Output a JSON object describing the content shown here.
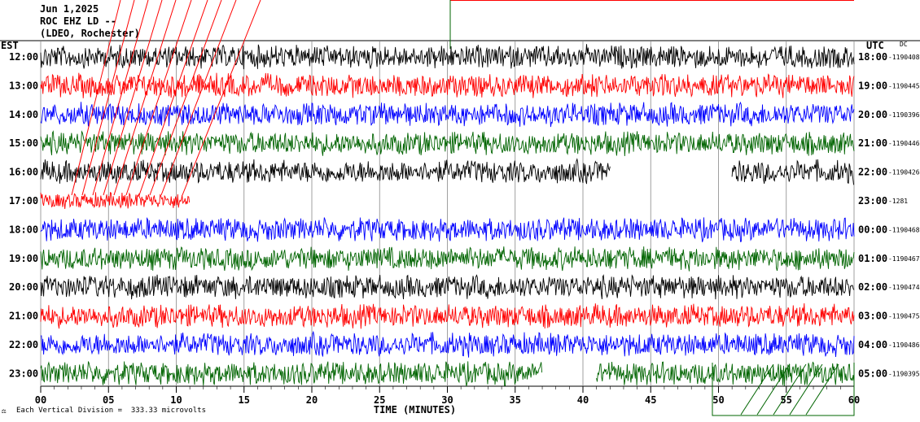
{
  "header": {
    "date": "Jun 1,2025",
    "station": "ROC EHZ LD --",
    "network": "(LDEO, Rochester)",
    "left_zone": "EST",
    "right_zone": "UTC",
    "dc_label": "DC"
  },
  "footer": {
    "scale_note": "Each Vertical Division =  333.33 microvolts"
  },
  "chart_data": {
    "type": "line",
    "title": "ROC EHZ LD --",
    "xlabel": "TIME (MINUTES)",
    "ylabel": "",
    "xlim": [
      0,
      60
    ],
    "x_ticks": [
      "00",
      "05",
      "10",
      "15",
      "20",
      "25",
      "30",
      "35",
      "40",
      "45",
      "50",
      "55",
      "60"
    ],
    "trace_colors": [
      "#000000",
      "#ff0000",
      "#0000ff",
      "#006400"
    ],
    "rows": [
      {
        "est": "12:00",
        "utc": "18:00",
        "dc": "-1190408",
        "color": "#000000",
        "segments": [
          [
            0,
            60
          ]
        ]
      },
      {
        "est": "13:00",
        "utc": "19:00",
        "dc": "-1190445",
        "color": "#ff0000",
        "segments": [
          [
            0,
            60
          ]
        ]
      },
      {
        "est": "14:00",
        "utc": "20:00",
        "dc": "-1190396",
        "color": "#0000ff",
        "segments": [
          [
            0,
            60
          ]
        ]
      },
      {
        "est": "15:00",
        "utc": "21:00",
        "dc": "-1190446",
        "color": "#006400",
        "segments": [
          [
            0,
            60
          ]
        ]
      },
      {
        "est": "16:00",
        "utc": "22:00",
        "dc": "-1190426",
        "color": "#000000",
        "segments": [
          [
            0,
            42
          ],
          [
            51,
            60
          ]
        ]
      },
      {
        "est": "17:00",
        "utc": "23:00",
        "dc": "-1281",
        "color": "#ff0000",
        "segments": [
          [
            0,
            11
          ]
        ]
      },
      {
        "est": "18:00",
        "utc": "00:00",
        "dc": "-1190468",
        "color": "#0000ff",
        "segments": [
          [
            0,
            60
          ]
        ]
      },
      {
        "est": "19:00",
        "utc": "01:00",
        "dc": "-1190467",
        "color": "#006400",
        "segments": [
          [
            0,
            60
          ]
        ]
      },
      {
        "est": "20:00",
        "utc": "02:00",
        "dc": "-1190474",
        "color": "#000000",
        "segments": [
          [
            0,
            60
          ]
        ]
      },
      {
        "est": "21:00",
        "utc": "03:00",
        "dc": "-1190475",
        "color": "#ff0000",
        "segments": [
          [
            0,
            60
          ]
        ]
      },
      {
        "est": "22:00",
        "utc": "04:00",
        "dc": "-1190486",
        "color": "#0000ff",
        "segments": [
          [
            0,
            60
          ]
        ]
      },
      {
        "est": "23:00",
        "utc": "05:00",
        "dc": "-1190395",
        "color": "#006400",
        "segments": [
          [
            0,
            37
          ],
          [
            41,
            49.5
          ],
          [
            49.5,
            60
          ]
        ]
      }
    ]
  }
}
